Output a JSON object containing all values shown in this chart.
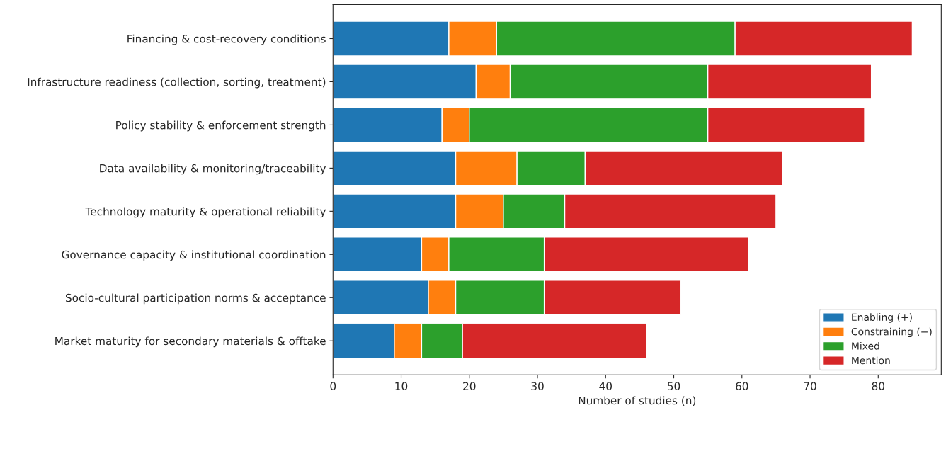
{
  "chart_data": {
    "type": "bar",
    "orientation": "horizontal",
    "stacked": true,
    "xlabel": "Number of studies (n)",
    "categories": [
      "Financing & cost-recovery conditions",
      "Infrastructure readiness (collection, sorting, treatment)",
      "Policy stability & enforcement strength",
      "Data availability & monitoring/traceability",
      "Technology maturity & operational reliability",
      "Governance capacity & institutional coordination",
      "Socio-cultural participation norms & acceptance",
      "Market maturity for secondary materials & offtake"
    ],
    "series": [
      {
        "name": "Enabling (+)",
        "color": "#1f77b4",
        "values": [
          17,
          21,
          16,
          18,
          18,
          13,
          14,
          9
        ]
      },
      {
        "name": "Constraining (−)",
        "color": "#ff7f0e",
        "values": [
          7,
          5,
          4,
          9,
          7,
          4,
          4,
          4
        ]
      },
      {
        "name": "Mixed",
        "color": "#2ca02c",
        "values": [
          35,
          29,
          35,
          10,
          9,
          14,
          13,
          6
        ]
      },
      {
        "name": "Mention",
        "color": "#d62728",
        "values": [
          26,
          24,
          23,
          29,
          31,
          30,
          20,
          27
        ]
      }
    ],
    "xlim": [
      0,
      89.25
    ],
    "xticks": [
      0,
      10,
      20,
      30,
      40,
      50,
      60,
      70,
      80
    ],
    "legend": "bottom right",
    "grid": false
  }
}
